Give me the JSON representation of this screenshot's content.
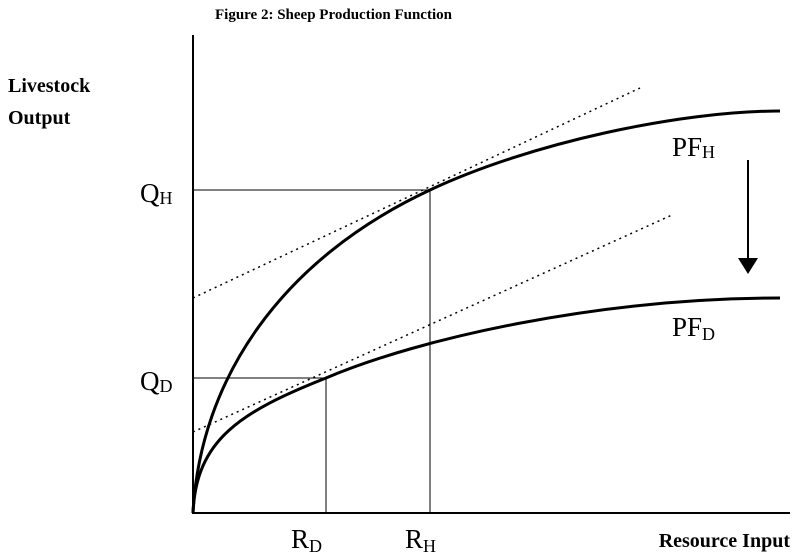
{
  "title": "Figure 2: Sheep Production Function",
  "y_axis_label": [
    "Livestock",
    "Output"
  ],
  "x_axis_label": "Resource Input",
  "labels": {
    "q_high": {
      "main": "Q",
      "sub": "H"
    },
    "q_low": {
      "main": "Q",
      "sub": "D"
    },
    "r_low": {
      "main": "R",
      "sub": "D"
    },
    "r_high": {
      "main": "R",
      "sub": "H"
    },
    "pf_high": {
      "main": "PF",
      "sub": "H"
    },
    "pf_low": {
      "main": "PF",
      "sub": "D"
    }
  }
}
